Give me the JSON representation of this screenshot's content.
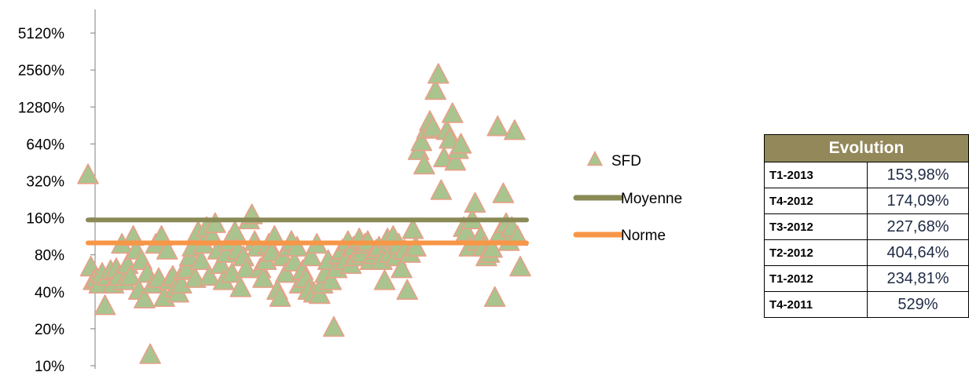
{
  "chart_data": {
    "type": "scatter",
    "y_scale": "log2",
    "ylim": [
      10,
      7000
    ],
    "y_ticks": [
      "10%",
      "20%",
      "40%",
      "80%",
      "160%",
      "320%",
      "640%",
      "1280%",
      "2560%",
      "5120%"
    ],
    "series": [
      {
        "name": "SFD",
        "marker": "triangle",
        "color": "#a9c48e",
        "edge_color": "#e8a08a",
        "points": [
          [
            1,
            350
          ],
          [
            2,
            62
          ],
          [
            3,
            48
          ],
          [
            4,
            50
          ],
          [
            5,
            45
          ],
          [
            6,
            55
          ],
          [
            7,
            30
          ],
          [
            8,
            52
          ],
          [
            9,
            58
          ],
          [
            10,
            45
          ],
          [
            11,
            60
          ],
          [
            12,
            52
          ],
          [
            13,
            95
          ],
          [
            14,
            48
          ],
          [
            15,
            65
          ],
          [
            16,
            52
          ],
          [
            17,
            110
          ],
          [
            18,
            85
          ],
          [
            19,
            40
          ],
          [
            20,
            70
          ],
          [
            21,
            34
          ],
          [
            22,
            55
          ],
          [
            23,
            12
          ],
          [
            24,
            45
          ],
          [
            25,
            95
          ],
          [
            26,
            50
          ],
          [
            27,
            110
          ],
          [
            28,
            35
          ],
          [
            29,
            85
          ],
          [
            30,
            48
          ],
          [
            31,
            52
          ],
          [
            32,
            42
          ],
          [
            33,
            38
          ],
          [
            34,
            45
          ],
          [
            35,
            58
          ],
          [
            36,
            60
          ],
          [
            37,
            75
          ],
          [
            38,
            90
          ],
          [
            39,
            50
          ],
          [
            40,
            120
          ],
          [
            41,
            70
          ],
          [
            42,
            95
          ],
          [
            43,
            130
          ],
          [
            44,
            52
          ],
          [
            45,
            110
          ],
          [
            46,
            140
          ],
          [
            47,
            85
          ],
          [
            48,
            65
          ],
          [
            49,
            48
          ],
          [
            50,
            80
          ],
          [
            51,
            100
          ],
          [
            52,
            55
          ],
          [
            53,
            120
          ],
          [
            54,
            85
          ],
          [
            55,
            42
          ],
          [
            56,
            75
          ],
          [
            57,
            60
          ],
          [
            58,
            150
          ],
          [
            59,
            165
          ],
          [
            60,
            100
          ],
          [
            61,
            90
          ],
          [
            62,
            60
          ],
          [
            63,
            50
          ],
          [
            64,
            70
          ],
          [
            65,
            95
          ],
          [
            66,
            82
          ],
          [
            67,
            110
          ],
          [
            68,
            40
          ],
          [
            69,
            35
          ],
          [
            70,
            75
          ],
          [
            71,
            55
          ],
          [
            72,
            90
          ],
          [
            73,
            100
          ],
          [
            74,
            68
          ],
          [
            75,
            90
          ],
          [
            76,
            45
          ],
          [
            77,
            58
          ],
          [
            78,
            50
          ],
          [
            79,
            40
          ],
          [
            80,
            75
          ],
          [
            81,
            38
          ],
          [
            82,
            95
          ],
          [
            83,
            37
          ],
          [
            84,
            45
          ],
          [
            85,
            55
          ],
          [
            86,
            70
          ],
          [
            87,
            48
          ],
          [
            88,
            20
          ],
          [
            89,
            60
          ],
          [
            90,
            78
          ],
          [
            91,
            85
          ],
          [
            92,
            70
          ],
          [
            93,
            100
          ],
          [
            94,
            65
          ],
          [
            95,
            90
          ],
          [
            96,
            75
          ],
          [
            97,
            105
          ],
          [
            98,
            80
          ],
          [
            99,
            95
          ],
          [
            100,
            100
          ],
          [
            101,
            70
          ],
          [
            102,
            78
          ],
          [
            103,
            85
          ],
          [
            104,
            90
          ],
          [
            105,
            70
          ],
          [
            106,
            48
          ],
          [
            107,
            105
          ],
          [
            108,
            80
          ],
          [
            109,
            110
          ],
          [
            110,
            75
          ],
          [
            111,
            95
          ],
          [
            112,
            60
          ],
          [
            113,
            85
          ],
          [
            114,
            40
          ],
          [
            115,
            80
          ],
          [
            116,
            125
          ],
          [
            117,
            90
          ],
          [
            118,
            550
          ],
          [
            119,
            650
          ],
          [
            120,
            420
          ],
          [
            121,
            820
          ],
          [
            122,
            950
          ],
          [
            123,
            850
          ],
          [
            124,
            1700
          ],
          [
            125,
            2300
          ],
          [
            126,
            260
          ],
          [
            127,
            480
          ],
          [
            128,
            800
          ],
          [
            129,
            680
          ],
          [
            130,
            1100
          ],
          [
            131,
            450
          ],
          [
            132,
            560
          ],
          [
            133,
            620
          ],
          [
            134,
            130
          ],
          [
            135,
            120
          ],
          [
            136,
            90
          ],
          [
            137,
            150
          ],
          [
            138,
            205
          ],
          [
            139,
            100
          ],
          [
            140,
            110
          ],
          [
            141,
            90
          ],
          [
            142,
            75
          ],
          [
            143,
            80
          ],
          [
            144,
            88
          ],
          [
            145,
            35
          ],
          [
            146,
            860
          ],
          [
            147,
            120
          ],
          [
            148,
            245
          ],
          [
            149,
            140
          ],
          [
            150,
            100
          ],
          [
            151,
            130
          ],
          [
            152,
            800
          ],
          [
            153,
            110
          ],
          [
            154,
            62
          ]
        ]
      },
      {
        "name": "Moyenne",
        "type": "line",
        "value": 153.98,
        "color": "#8a8a56"
      },
      {
        "name": "Norme",
        "type": "line",
        "value": 100,
        "color": "#f79646"
      }
    ],
    "legend": [
      "SFD",
      "Moyenne",
      "Norme"
    ]
  },
  "table": {
    "header": "Evolution",
    "rows": [
      {
        "period": "T1-2013",
        "value": "153,98%"
      },
      {
        "period": "T4-2012",
        "value": "174,09%"
      },
      {
        "period": "T3-2012",
        "value": "227,68%"
      },
      {
        "period": "T2-2012",
        "value": "404,64%"
      },
      {
        "period": "T1-2012",
        "value": "234,81%"
      },
      {
        "period": "T4-2011",
        "value": "529%"
      }
    ]
  }
}
